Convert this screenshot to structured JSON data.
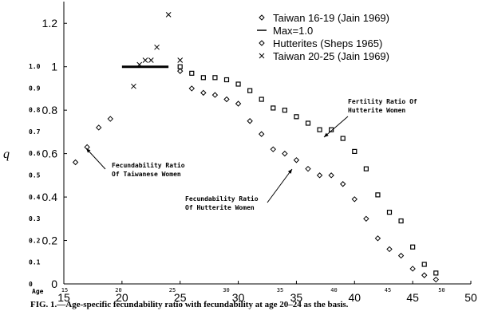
{
  "chart_data": {
    "type": "scatter",
    "xlim": [
      15,
      50
    ],
    "ylim": [
      0,
      1.3
    ],
    "x_ticks": [
      15,
      20,
      25,
      30,
      35,
      40,
      45,
      50
    ],
    "x_tick_labels": [
      "15",
      "20",
      "25",
      "30",
      "35",
      "40",
      "45",
      "50"
    ],
    "y_ticks": [
      0,
      0.2,
      0.4,
      0.6,
      0.8,
      1.0,
      1.2
    ],
    "y_tick_labels": [
      "0",
      "0.2",
      "0.4",
      "0.6",
      "0.8",
      "1",
      "1.2"
    ],
    "scan_x_ticks": [
      "15",
      "20",
      "25",
      "30",
      "35",
      "40",
      "45",
      "50"
    ],
    "scan_y_ticks": [
      "1.0",
      "0.9",
      "0.8",
      "0.7",
      "0.6",
      "0.5",
      "0.4",
      "0.3",
      "0.2",
      "0.1",
      "0"
    ],
    "scan_age_label": "Age",
    "ylabel": "q",
    "series": [
      {
        "name": "Taiwan 16-19 (Jain 1969)",
        "marker": "diamond",
        "points": [
          {
            "x": 16,
            "y": 0.56
          },
          {
            "x": 17,
            "y": 0.63
          },
          {
            "x": 18,
            "y": 0.72
          },
          {
            "x": 19,
            "y": 0.76
          }
        ]
      },
      {
        "name": "Max=1.0",
        "marker": "hline",
        "points": [
          {
            "x": 20,
            "y": 1.0
          },
          {
            "x": 24,
            "y": 1.0
          }
        ]
      },
      {
        "name": "Hutterites (Sheps 1965)",
        "marker": "diamond",
        "points": [
          {
            "x": 25,
            "y": 0.98
          },
          {
            "x": 26,
            "y": 0.9
          },
          {
            "x": 27,
            "y": 0.88
          },
          {
            "x": 28,
            "y": 0.87
          },
          {
            "x": 29,
            "y": 0.85
          },
          {
            "x": 30,
            "y": 0.83
          },
          {
            "x": 31,
            "y": 0.75
          },
          {
            "x": 32,
            "y": 0.69
          },
          {
            "x": 33,
            "y": 0.62
          },
          {
            "x": 34,
            "y": 0.6
          },
          {
            "x": 35,
            "y": 0.57
          },
          {
            "x": 36,
            "y": 0.53
          },
          {
            "x": 37,
            "y": 0.5
          },
          {
            "x": 38,
            "y": 0.5
          },
          {
            "x": 39,
            "y": 0.46
          },
          {
            "x": 40,
            "y": 0.39
          },
          {
            "x": 41,
            "y": 0.3
          },
          {
            "x": 42,
            "y": 0.21
          },
          {
            "x": 43,
            "y": 0.16
          },
          {
            "x": 44,
            "y": 0.13
          },
          {
            "x": 45,
            "y": 0.07
          },
          {
            "x": 46,
            "y": 0.04
          },
          {
            "x": 47,
            "y": 0.02
          }
        ]
      },
      {
        "name": "Taiwan 20-25 (Jain 1969)",
        "marker": "cross",
        "points": [
          {
            "x": 21,
            "y": 0.91
          },
          {
            "x": 21.5,
            "y": 1.01
          },
          {
            "x": 22,
            "y": 1.03
          },
          {
            "x": 22.5,
            "y": 1.03
          },
          {
            "x": 23,
            "y": 1.09
          },
          {
            "x": 24,
            "y": 1.24
          },
          {
            "x": 25,
            "y": 1.03
          }
        ]
      },
      {
        "name": "Fertility Ratio of Hutterite Women",
        "marker": "square",
        "points": [
          {
            "x": 25,
            "y": 1.0
          },
          {
            "x": 26,
            "y": 0.97
          },
          {
            "x": 27,
            "y": 0.95
          },
          {
            "x": 28,
            "y": 0.95
          },
          {
            "x": 29,
            "y": 0.94
          },
          {
            "x": 30,
            "y": 0.92
          },
          {
            "x": 31,
            "y": 0.89
          },
          {
            "x": 32,
            "y": 0.85
          },
          {
            "x": 33,
            "y": 0.81
          },
          {
            "x": 34,
            "y": 0.8
          },
          {
            "x": 35,
            "y": 0.77
          },
          {
            "x": 36,
            "y": 0.74
          },
          {
            "x": 37,
            "y": 0.71
          },
          {
            "x": 38,
            "y": 0.71
          },
          {
            "x": 39,
            "y": 0.67
          },
          {
            "x": 40,
            "y": 0.61
          },
          {
            "x": 41,
            "y": 0.53
          },
          {
            "x": 42,
            "y": 0.41
          },
          {
            "x": 43,
            "y": 0.33
          },
          {
            "x": 44,
            "y": 0.29
          },
          {
            "x": 45,
            "y": 0.17
          },
          {
            "x": 46,
            "y": 0.09
          },
          {
            "x": 47,
            "y": 0.05
          }
        ]
      }
    ],
    "legend": {
      "placement": "top-right",
      "entries": [
        {
          "label": "Taiwan 16-19 (Jain 1969)",
          "marker": "diamond"
        },
        {
          "label": "Max=1.0",
          "marker": "hline"
        },
        {
          "label": "Hutterites (Sheps 1965)",
          "marker": "diamond"
        },
        {
          "label": "Taiwan 20-25 (Jain 1969)",
          "marker": "cross"
        }
      ]
    },
    "annotations": [
      {
        "lines": [
          "Fecundability Ratio",
          "Of Taiwanese Women"
        ]
      },
      {
        "lines": [
          "Fecundability Ratio",
          "Of Hutterite Women"
        ]
      },
      {
        "lines": [
          "Fertility Ratio Of",
          "Hutterite Women"
        ]
      }
    ],
    "caption": "FIG. 1.—Age-specific fecundability ratio with fecundability at age 20–24 as the basis.",
    "colors": {
      "ink": "#000000",
      "background": "#ffffff"
    }
  }
}
